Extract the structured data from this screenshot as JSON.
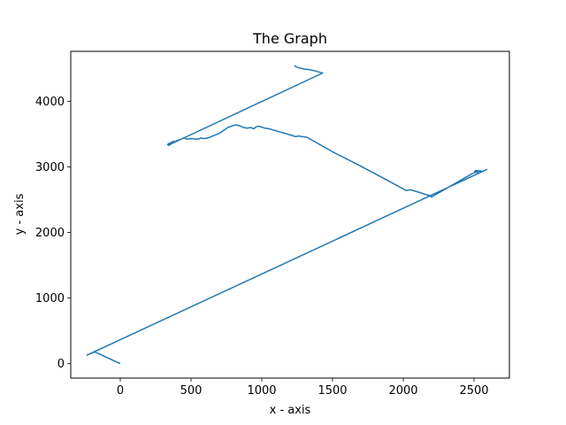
{
  "chart_data": {
    "type": "line",
    "title": "The Graph",
    "xlabel": "x - axis",
    "ylabel": "y - axis",
    "xlim": [
      -350,
      2750
    ],
    "ylim": [
      -220,
      4760
    ],
    "xticks": [
      0,
      500,
      1000,
      1500,
      2000,
      2500
    ],
    "yticks": [
      0,
      1000,
      2000,
      3000,
      4000
    ],
    "xtick_labels": [
      "0",
      "500",
      "1000",
      "1500",
      "2000",
      "2500"
    ],
    "ytick_labels": [
      "0",
      "1000",
      "2000",
      "3000",
      "4000"
    ],
    "grid": false,
    "line_color": "#1f77b4",
    "series": [
      {
        "x": [
          0,
          -180,
          -235,
          2590,
          2530,
          2510,
          2555,
          2505,
          2520,
          2490,
          2200,
          2180,
          2200,
          2100,
          2050,
          2020,
          1900,
          1700,
          1500,
          1320,
          1260,
          1240,
          1180,
          1100,
          1050,
          1020,
          980,
          960,
          945,
          920,
          900,
          870,
          850,
          820,
          800,
          760,
          700,
          620,
          590,
          570,
          550,
          500,
          470,
          455,
          440,
          420,
          400,
          385,
          375,
          360,
          350,
          340,
          335,
          345,
          360,
          370,
          355,
          340,
          1430,
          1410,
          1380,
          1360,
          1340,
          1300,
          1260,
          1230
        ],
        "y": [
          0,
          180,
          130,
          2960,
          2900,
          2945,
          2935,
          2930,
          2920,
          2900,
          2540,
          2570,
          2550,
          2620,
          2650,
          2640,
          2780,
          3010,
          3230,
          3450,
          3470,
          3460,
          3500,
          3550,
          3580,
          3590,
          3620,
          3610,
          3580,
          3600,
          3590,
          3600,
          3620,
          3640,
          3630,
          3600,
          3510,
          3440,
          3430,
          3440,
          3420,
          3430,
          3420,
          3440,
          3430,
          3410,
          3400,
          3380,
          3390,
          3370,
          3360,
          3350,
          3340,
          3330,
          3350,
          3360,
          3360,
          3330,
          4430,
          4440,
          4460,
          4470,
          4480,
          4490,
          4510,
          4540
        ]
      }
    ]
  }
}
